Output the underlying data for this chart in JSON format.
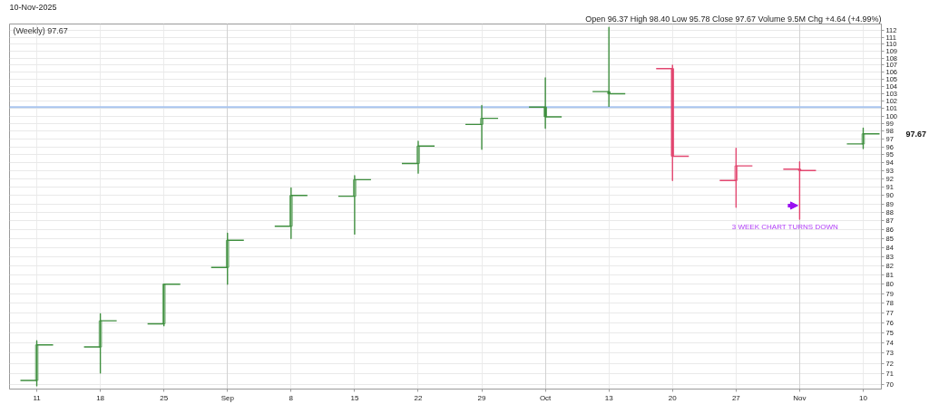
{
  "chart_data": {
    "type": "candlestick",
    "subtitle": "10-Nov-2025",
    "annotations": [
      "Open 96.37 High 98.40 Low 95.78 Close 97.67 Volume 9.5M Chg +4.64 (+4.99%)",
      "(Weekly) 97.67",
      "97.67",
      {
        "text": "3 WEEK CHART TURNS DOWN",
        "x": "2025-11-03",
        "y": 88.8
      }
    ],
    "x": [
      "2025-08-11",
      "2025-08-18",
      "2025-08-25",
      "2025-09-01",
      "2025-09-08",
      "2025-09-15",
      "2025-09-22",
      "2025-09-29",
      "2025-10-06",
      "2025-10-13",
      "2025-10-20",
      "2025-10-27",
      "2025-11-03",
      "2025-11-10"
    ],
    "ohlc": [
      [
        70.4,
        74.2,
        69.9,
        73.8
      ],
      [
        73.6,
        76.9,
        71.1,
        76.2
      ],
      [
        75.9,
        80.0,
        75.7,
        80.0
      ],
      [
        81.8,
        85.6,
        80.0,
        84.8
      ],
      [
        86.4,
        90.9,
        85.0,
        90.0
      ],
      [
        89.9,
        92.4,
        85.5,
        91.9
      ],
      [
        93.9,
        96.7,
        92.7,
        96.1
      ],
      [
        98.9,
        101.4,
        95.7,
        99.7
      ],
      [
        101.2,
        105.2,
        98.4,
        99.9
      ],
      [
        103.3,
        112.5,
        101.3,
        103.0
      ],
      [
        106.5,
        107.0,
        91.8,
        94.8
      ],
      [
        91.8,
        95.8,
        88.6,
        93.6
      ],
      [
        93.2,
        94.1,
        87.2,
        93.03
      ],
      [
        96.37,
        98.4,
        95.78,
        97.67
      ]
    ],
    "colors": [
      "#3f8f3f",
      "#3f8f3f",
      "#3f8f3f",
      "#3f8f3f",
      "#3f8f3f",
      "#3f8f3f",
      "#3f8f3f",
      "#3f8f3f",
      "#3f8f3f",
      "#3f8f3f",
      "#e2466f",
      "#e2466f",
      "#e2466f",
      "#3f8f3f"
    ],
    "xlim": [
      "2025-08-08",
      "2025-11-12"
    ],
    "xticks": [
      {
        "value": "2025-08-11",
        "label": "11"
      },
      {
        "value": "2025-08-18",
        "label": "18"
      },
      {
        "value": "2025-08-25",
        "label": "25"
      },
      {
        "value": "2025-09-01",
        "label": "Sep"
      },
      {
        "value": "2025-09-08",
        "label": "8"
      },
      {
        "value": "2025-09-15",
        "label": "15"
      },
      {
        "value": "2025-09-22",
        "label": "22"
      },
      {
        "value": "2025-09-29",
        "label": "29"
      },
      {
        "value": "2025-10-06",
        "label": "Oct"
      },
      {
        "value": "2025-10-13",
        "label": "13"
      },
      {
        "value": "2025-10-20",
        "label": "20"
      },
      {
        "value": "2025-10-27",
        "label": "27"
      },
      {
        "value": "2025-11-03",
        "label": "Nov"
      },
      {
        "value": "2025-11-10",
        "label": "10"
      }
    ],
    "ylim": [
      69.6,
      113
    ],
    "yticks": [
      70,
      71,
      72,
      73,
      74,
      75,
      76,
      77,
      78,
      79,
      80,
      81,
      82,
      83,
      84,
      85,
      86,
      87,
      88,
      89,
      90,
      91,
      92,
      93,
      94,
      95,
      96,
      97,
      98,
      99,
      100,
      101,
      102,
      103,
      104,
      105,
      106,
      107,
      108,
      109,
      110,
      111,
      112
    ],
    "log": true,
    "grid": true,
    "ref_lines": [
      {
        "axis": "y",
        "value": 101.2,
        "color": "#a9c5ef"
      }
    ]
  }
}
